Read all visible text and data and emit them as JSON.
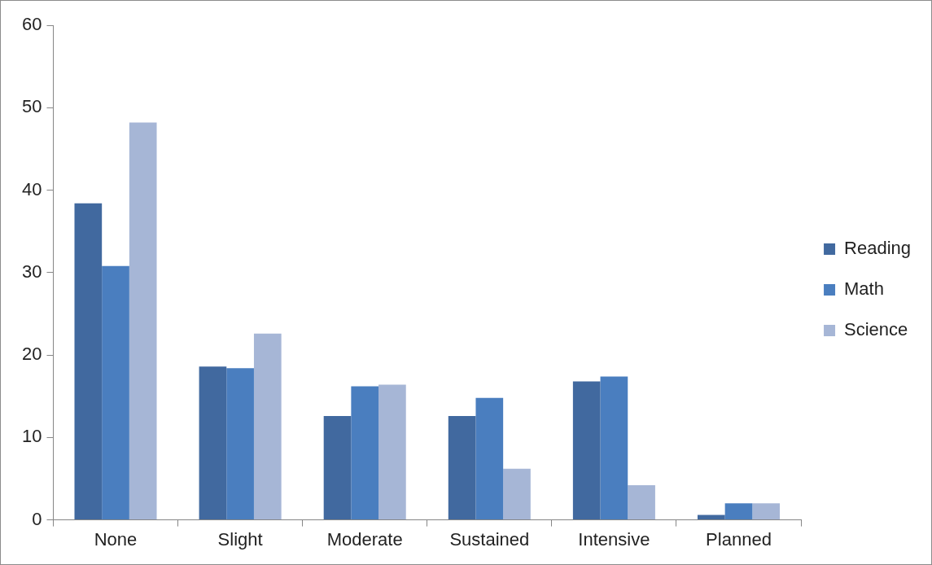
{
  "chart_data": {
    "type": "bar",
    "categories": [
      "None",
      "Slight",
      "Moderate",
      "Sustained",
      "Intensive",
      "Planned"
    ],
    "series": [
      {
        "name": "Reading",
        "color": "#41699f",
        "values": [
          38.4,
          18.6,
          12.6,
          12.6,
          16.8,
          0.6
        ]
      },
      {
        "name": "Math",
        "color": "#4a7ebf",
        "values": [
          30.8,
          18.4,
          16.2,
          14.8,
          17.4,
          2.0
        ]
      },
      {
        "name": "Science",
        "color": "#a6b6d6",
        "values": [
          48.2,
          22.6,
          16.4,
          6.2,
          4.2,
          2.0
        ]
      }
    ],
    "ylim": [
      0,
      60
    ],
    "yticks": [
      0,
      10,
      20,
      30,
      40,
      50,
      60
    ],
    "grid": false,
    "legend": "right"
  }
}
